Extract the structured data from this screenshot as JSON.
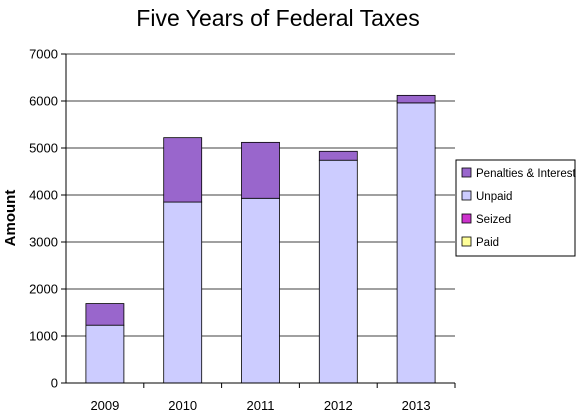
{
  "chart_data": {
    "type": "bar",
    "stacked": true,
    "title": "Five Years of Federal Taxes",
    "xlabel": "",
    "ylabel": "Amount",
    "categories": [
      "2009",
      "2010",
      "2011",
      "2012",
      "2013"
    ],
    "ylim": [
      0,
      7000
    ],
    "yticks": [
      "0",
      "1000",
      "2000",
      "3000",
      "4000",
      "5000",
      "6000",
      "7000"
    ],
    "grid": true,
    "legend_position": "right",
    "series": [
      {
        "name": "Paid",
        "color": "#ffff99",
        "values": [
          0,
          0,
          0,
          0,
          0
        ]
      },
      {
        "name": "Seized",
        "color": "#cc33cc",
        "values": [
          0,
          0,
          0,
          0,
          0
        ]
      },
      {
        "name": "Unpaid",
        "color": "#ccccff",
        "values": [
          1230,
          3850,
          3930,
          4740,
          5960
        ]
      },
      {
        "name": "Penalties & Interest",
        "color": "#9966cc",
        "values": [
          460,
          1370,
          1190,
          190,
          160
        ]
      }
    ],
    "legend_order": [
      "Penalties & Interest",
      "Unpaid",
      "Seized",
      "Paid"
    ]
  }
}
